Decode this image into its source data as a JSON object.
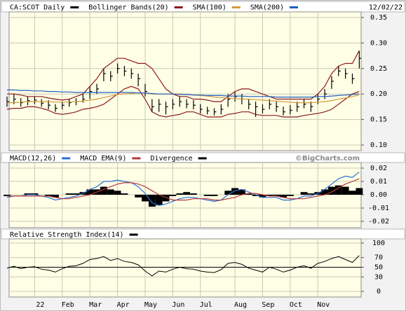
{
  "chart_data": [
    {
      "type": "ohlc",
      "date": "12/02/22",
      "categories": [
        null,
        null,
        null,
        null,
        "22",
        null,
        null,
        null,
        "Feb",
        null,
        null,
        null,
        "Mar",
        null,
        null,
        null,
        "Apr",
        null,
        null,
        null,
        "May",
        null,
        null,
        null,
        "Jun",
        null,
        null,
        null,
        "Jul",
        null,
        null,
        null,
        null,
        "Aug",
        null,
        null,
        null,
        "Sep",
        null,
        null,
        null,
        "Oct",
        null,
        null,
        null,
        "Nov",
        null,
        null,
        null,
        null,
        null,
        null
      ],
      "series": [
        {
          "name": "CA:SCOT Daily",
          "color": "#000000",
          "high": [
            0.195,
            0.2,
            0.192,
            0.195,
            0.195,
            0.19,
            0.188,
            0.18,
            0.185,
            0.19,
            0.192,
            0.2,
            0.215,
            0.22,
            0.25,
            0.245,
            0.26,
            0.255,
            0.25,
            0.24,
            0.22,
            0.19,
            0.19,
            0.185,
            0.19,
            0.195,
            0.19,
            0.188,
            0.18,
            0.175,
            0.172,
            0.18,
            0.2,
            0.205,
            0.2,
            0.19,
            0.185,
            0.18,
            0.19,
            0.185,
            0.175,
            0.178,
            0.185,
            0.19,
            0.185,
            0.2,
            0.21,
            0.235,
            0.255,
            0.25,
            0.24,
            0.285
          ],
          "low": [
            0.175,
            0.18,
            0.175,
            0.178,
            0.18,
            0.175,
            0.17,
            0.165,
            0.17,
            0.175,
            0.178,
            0.183,
            0.19,
            0.2,
            0.225,
            0.225,
            0.24,
            0.235,
            0.23,
            0.215,
            0.195,
            0.165,
            0.165,
            0.16,
            0.17,
            0.175,
            0.172,
            0.17,
            0.162,
            0.16,
            0.158,
            0.16,
            0.175,
            0.185,
            0.18,
            0.17,
            0.155,
            0.162,
            0.17,
            0.165,
            0.158,
            0.16,
            0.165,
            0.172,
            0.165,
            0.18,
            0.19,
            0.21,
            0.235,
            0.23,
            0.22,
            0.25
          ],
          "close": [
            0.185,
            0.19,
            0.183,
            0.187,
            0.188,
            0.182,
            0.178,
            0.172,
            0.178,
            0.183,
            0.185,
            0.19,
            0.205,
            0.21,
            0.24,
            0.235,
            0.25,
            0.245,
            0.24,
            0.23,
            0.205,
            0.175,
            0.18,
            0.175,
            0.18,
            0.185,
            0.18,
            0.178,
            0.17,
            0.167,
            0.165,
            0.17,
            0.19,
            0.195,
            0.19,
            0.18,
            0.175,
            0.17,
            0.18,
            0.175,
            0.165,
            0.168,
            0.175,
            0.18,
            0.175,
            0.19,
            0.2,
            0.225,
            0.245,
            0.24,
            0.23,
            0.27
          ]
        },
        {
          "name": "Bollinger Bands(20)",
          "color": "#8b1a1a",
          "upper": [
            0.2,
            0.2,
            0.198,
            0.195,
            0.195,
            0.195,
            0.192,
            0.19,
            0.188,
            0.19,
            0.195,
            0.2,
            0.215,
            0.23,
            0.25,
            0.26,
            0.27,
            0.27,
            0.265,
            0.26,
            0.26,
            0.25,
            0.23,
            0.21,
            0.2,
            0.195,
            0.195,
            0.19,
            0.19,
            0.188,
            0.185,
            0.185,
            0.195,
            0.205,
            0.21,
            0.21,
            0.205,
            0.2,
            0.195,
            0.19,
            0.19,
            0.19,
            0.19,
            0.19,
            0.19,
            0.2,
            0.215,
            0.24,
            0.255,
            0.26,
            0.26,
            0.285
          ],
          "lower": [
            0.17,
            0.172,
            0.172,
            0.175,
            0.175,
            0.172,
            0.168,
            0.162,
            0.16,
            0.162,
            0.165,
            0.17,
            0.172,
            0.175,
            0.18,
            0.19,
            0.2,
            0.21,
            0.215,
            0.21,
            0.19,
            0.165,
            0.158,
            0.155,
            0.158,
            0.16,
            0.165,
            0.165,
            0.16,
            0.155,
            0.155,
            0.155,
            0.16,
            0.162,
            0.165,
            0.165,
            0.16,
            0.158,
            0.158,
            0.158,
            0.155,
            0.155,
            0.155,
            0.158,
            0.16,
            0.162,
            0.165,
            0.17,
            0.18,
            0.19,
            0.2,
            0.205
          ]
        },
        {
          "name": "SMA(100)",
          "color": "#d49a3a",
          "values": [
            0.183,
            0.183,
            0.184,
            0.185,
            0.185,
            0.185,
            0.185,
            0.184,
            0.184,
            0.184,
            0.185,
            0.186,
            0.188,
            0.19,
            0.193,
            0.196,
            0.199,
            0.2,
            0.201,
            0.202,
            0.202,
            0.2,
            0.2,
            0.2,
            0.2,
            0.2,
            0.199,
            0.198,
            0.197,
            0.196,
            0.194,
            0.193,
            0.192,
            0.191,
            0.19,
            0.19,
            0.189,
            0.188,
            0.187,
            0.186,
            0.185,
            0.184,
            0.183,
            0.183,
            0.183,
            0.184,
            0.185,
            0.187,
            0.19,
            0.192,
            0.195,
            0.198
          ]
        },
        {
          "name": "SMA(200)",
          "color": "#1f5fbf",
          "values": [
            0.208,
            0.208,
            0.207,
            0.207,
            0.206,
            0.206,
            0.205,
            0.205,
            0.204,
            0.204,
            0.203,
            0.203,
            0.203,
            0.203,
            0.203,
            0.203,
            0.203,
            0.203,
            0.203,
            0.202,
            0.202,
            0.201,
            0.2,
            0.2,
            0.2,
            0.199,
            0.199,
            0.198,
            0.198,
            0.197,
            0.197,
            0.197,
            0.196,
            0.196,
            0.196,
            0.195,
            0.195,
            0.195,
            0.195,
            0.194,
            0.194,
            0.194,
            0.194,
            0.194,
            0.194,
            0.195,
            0.195,
            0.196,
            0.197,
            0.198,
            0.199,
            0.2
          ]
        }
      ],
      "ylim": [
        0.1,
        0.35
      ],
      "yticks": [
        0.35,
        {
          "value": 0.3,
          "label": "0.30"
        },
        0.25,
        {
          "value": 0.2,
          "label": "0.20"
        },
        0.15,
        {
          "value": 0.1,
          "label": "0.10"
        }
      ],
      "grid": true
    },
    {
      "type": "macd",
      "watermark": "©BigCharts.com",
      "series": [
        {
          "name": "MACD(12,26)",
          "color": "#2a6fd6",
          "values": [
            -0.002,
            -0.001,
            -0.001,
            0,
            0,
            -0.001,
            -0.002,
            -0.004,
            -0.003,
            -0.002,
            -0.001,
            0.001,
            0.004,
            0.006,
            0.01,
            0.01,
            0.011,
            0.01,
            0.009,
            0.006,
            0.001,
            -0.006,
            -0.008,
            -0.007,
            -0.005,
            -0.003,
            -0.002,
            -0.002,
            -0.003,
            -0.004,
            -0.005,
            -0.004,
            0,
            0.003,
            0.004,
            0.002,
            0,
            -0.002,
            -0.002,
            -0.002,
            -0.004,
            -0.004,
            -0.003,
            -0.001,
            -0.001,
            0.001,
            0.004,
            0.008,
            0.012,
            0.014,
            0.013,
            0.017
          ]
        },
        {
          "name": "MACD EMA(9)",
          "color": "#b23a3a",
          "values": [
            -0.001,
            -0.001,
            -0.001,
            -0.001,
            -0.001,
            -0.001,
            -0.001,
            -0.002,
            -0.003,
            -0.003,
            -0.002,
            -0.001,
            0,
            0.002,
            0.004,
            0.006,
            0.008,
            0.009,
            0.009,
            0.008,
            0.006,
            0.003,
            0,
            -0.002,
            -0.004,
            -0.004,
            -0.004,
            -0.003,
            -0.003,
            -0.003,
            -0.004,
            -0.004,
            -0.003,
            -0.002,
            0,
            0.001,
            0.001,
            0,
            -0.001,
            -0.001,
            -0.002,
            -0.003,
            -0.003,
            -0.003,
            -0.002,
            -0.001,
            0,
            0.002,
            0.005,
            0.008,
            0.01,
            0.012
          ]
        },
        {
          "name": "Divergence",
          "color": "#000000",
          "values": [
            -0.001,
            0,
            0,
            0.001,
            0.001,
            0,
            -0.001,
            -0.002,
            0,
            0.001,
            0.001,
            0.002,
            0.004,
            0.004,
            0.006,
            0.004,
            0.003,
            0.001,
            0,
            -0.002,
            -0.005,
            -0.009,
            -0.008,
            -0.005,
            -0.001,
            0.001,
            0.002,
            0.001,
            0,
            -0.001,
            -0.001,
            0,
            0.003,
            0.005,
            0.004,
            0.001,
            -0.001,
            -0.002,
            -0.001,
            -0.001,
            -0.002,
            -0.001,
            0,
            0.002,
            0.001,
            0.002,
            0.004,
            0.006,
            0.007,
            0.006,
            0.003,
            0.005
          ]
        }
      ],
      "ylim": [
        -0.02,
        0.02
      ],
      "yticks": [
        0.02,
        0.01,
        {
          "value": 0,
          "label": "0.00"
        },
        -0.01,
        -0.02
      ],
      "grid": true
    },
    {
      "type": "line",
      "series": [
        {
          "name": "Relative Strength Index(14)",
          "color": "#000000",
          "values": [
            48,
            52,
            47,
            50,
            51,
            46,
            44,
            40,
            47,
            52,
            53,
            58,
            66,
            68,
            72,
            64,
            68,
            62,
            60,
            55,
            42,
            32,
            42,
            40,
            46,
            50,
            47,
            46,
            42,
            40,
            39,
            45,
            58,
            60,
            56,
            48,
            44,
            40,
            50,
            46,
            40,
            44,
            50,
            53,
            48,
            58,
            62,
            68,
            72,
            66,
            60,
            74
          ]
        }
      ],
      "ylim": [
        0,
        100
      ],
      "yticks": [
        100,
        70,
        50,
        30,
        0
      ],
      "reference_line": 50,
      "grid": true
    }
  ]
}
